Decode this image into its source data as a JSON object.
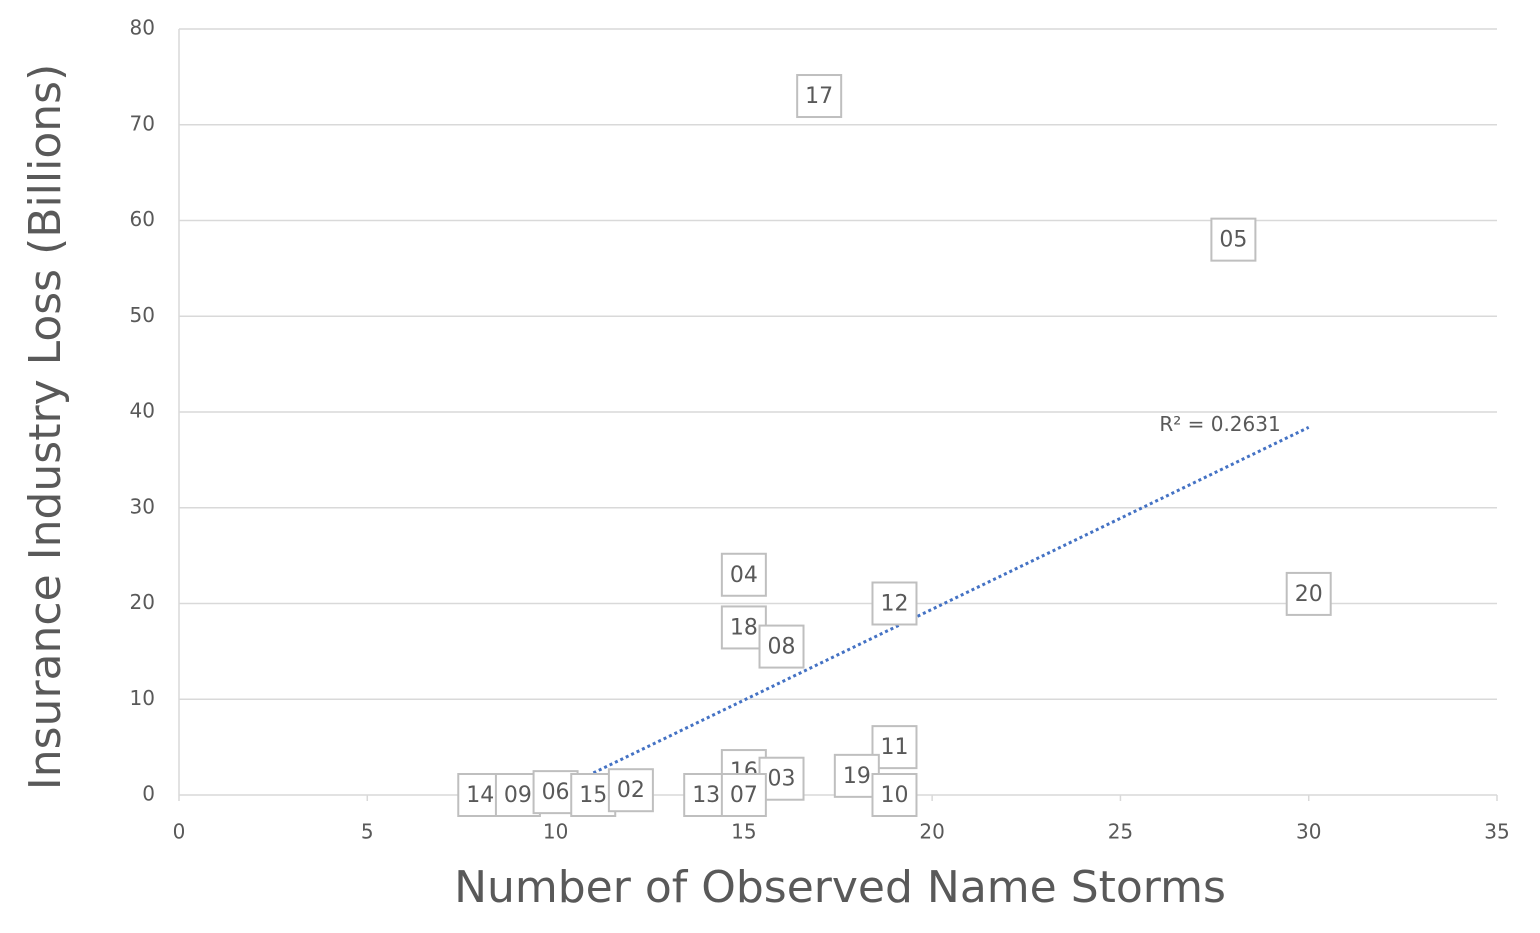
{
  "chart_data": {
    "type": "scatter",
    "x_label": "Number of Observed Name Storms",
    "y_label": "Insurance Industry Loss (Billions)",
    "series": [
      {
        "labels": [
          "17",
          "05",
          "20",
          "04",
          "18",
          "08",
          "12",
          "11",
          "16",
          "03",
          "19",
          "10",
          "13",
          "07",
          "14",
          "09",
          "06",
          "15",
          "02"
        ],
        "x": [
          17,
          28,
          30,
          15,
          15,
          16,
          19,
          19,
          15,
          16,
          18,
          19,
          14,
          15,
          8,
          9,
          10,
          11,
          12
        ],
        "values": [
          73,
          58,
          21,
          23,
          17.5,
          15.5,
          20,
          5,
          2.5,
          1.7,
          2,
          0,
          0,
          0,
          0,
          0,
          0.3,
          0,
          0.5
        ],
        "color": "#bfbfbf"
      }
    ],
    "trendline": {
      "x": [
        10,
        30
      ],
      "values": [
        0.4,
        38.4
      ],
      "color": "#4472c4",
      "label": "R² = 0.2631"
    },
    "xlim": [
      0,
      35
    ],
    "xticks": [
      0,
      5,
      10,
      15,
      20,
      25,
      30,
      35
    ],
    "ylim": [
      0,
      80
    ],
    "yticks": [
      0,
      10,
      20,
      30,
      40,
      50,
      60,
      70,
      80
    ],
    "grid": true
  }
}
